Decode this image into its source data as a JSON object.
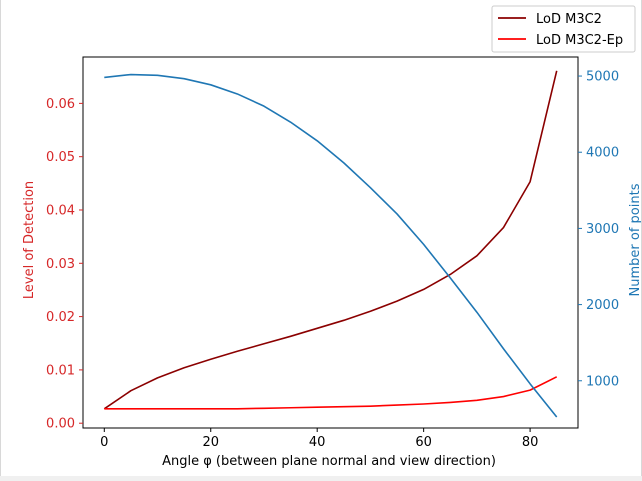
{
  "chart_data": {
    "type": "line",
    "title": "",
    "xlabel": "Angle φ (between plane normal and view direction)",
    "ylabel_left": "Level of Detection",
    "ylabel_right": "Number of points",
    "xlim": [
      -4,
      89
    ],
    "ylim_left": [
      -0.0009,
      0.0687
    ],
    "ylim_right": [
      380,
      5250
    ],
    "x_ticks": [
      0,
      20,
      40,
      60,
      80
    ],
    "y_left_ticks": [
      "0.00",
      "0.01",
      "0.02",
      "0.03",
      "0.04",
      "0.05",
      "0.06"
    ],
    "y_right_ticks": [
      1000,
      2000,
      3000,
      4000,
      5000
    ],
    "grid": false,
    "legend_position": "top-right",
    "x": [
      0,
      5,
      10,
      15,
      20,
      25,
      30,
      35,
      40,
      45,
      50,
      55,
      60,
      65,
      70,
      75,
      80,
      85
    ],
    "series": [
      {
        "name": "LoD M3C2",
        "axis": "left",
        "color": "#8b0000",
        "values": [
          0.0027,
          0.0061,
          0.0085,
          0.0104,
          0.012,
          0.0135,
          0.0149,
          0.0163,
          0.0178,
          0.0193,
          0.021,
          0.0229,
          0.0251,
          0.0279,
          0.0314,
          0.0367,
          0.0453,
          0.0661
        ]
      },
      {
        "name": "LoD M3C2-Ep",
        "axis": "left",
        "color": "#ff0000",
        "values": [
          0.0027,
          0.0027,
          0.0027,
          0.0027,
          0.0027,
          0.0027,
          0.0028,
          0.0029,
          0.003,
          0.0031,
          0.0032,
          0.0034,
          0.0036,
          0.0039,
          0.0043,
          0.005,
          0.0062,
          0.0087
        ]
      },
      {
        "axis": "right",
        "color": "#1f77b4",
        "values": [
          4982,
          5020,
          5010,
          4965,
          4885,
          4765,
          4605,
          4395,
          4150,
          3860,
          3535,
          3190,
          2790,
          2350,
          1900,
          1420,
          960,
          525
        ]
      }
    ],
    "colors": {
      "left_axis": "#d62728",
      "right_axis": "#1f77b4",
      "frame": "#000000"
    }
  }
}
